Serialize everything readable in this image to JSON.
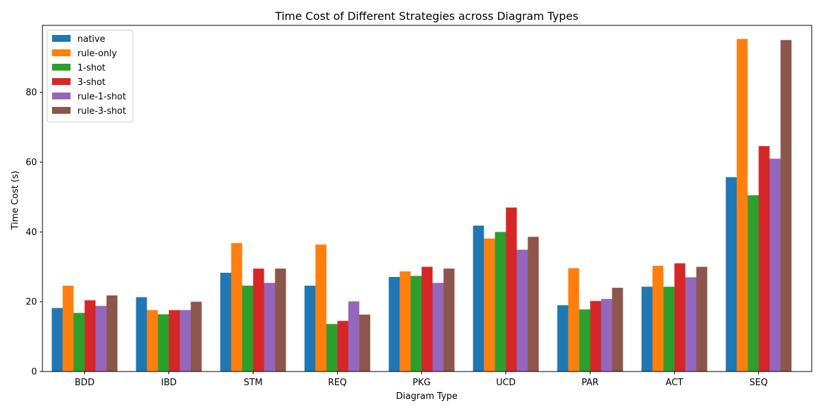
{
  "chart_data": {
    "type": "bar",
    "title": "Time Cost of Different Strategies across Diagram Types",
    "xlabel": "Diagram Type",
    "ylabel": "Time Cost (s)",
    "categories": [
      "BDD",
      "IBD",
      "STM",
      "REQ",
      "PKG",
      "UCD",
      "PAR",
      "ACT",
      "SEQ"
    ],
    "ylim": [
      0,
      99.2
    ],
    "yticks": [
      0,
      20,
      40,
      60,
      80
    ],
    "grid": false,
    "legend_position": "top-left",
    "series": [
      {
        "name": "native",
        "color": "#1f77b4",
        "values": [
          18.2,
          21.3,
          28.3,
          24.6,
          27.1,
          41.8,
          19.0,
          24.3,
          55.7
        ]
      },
      {
        "name": "rule-only",
        "color": "#ff7f0e",
        "values": [
          24.6,
          17.6,
          36.8,
          36.4,
          28.7,
          38.1,
          29.6,
          30.3,
          95.3
        ]
      },
      {
        "name": "1-shot",
        "color": "#2ca02c",
        "values": [
          16.8,
          16.4,
          24.6,
          13.6,
          27.4,
          40.0,
          17.8,
          24.3,
          50.5
        ]
      },
      {
        "name": "3-shot",
        "color": "#d62728",
        "values": [
          20.4,
          17.6,
          29.5,
          14.5,
          30.0,
          47.0,
          20.2,
          31.0,
          64.6
        ]
      },
      {
        "name": "rule-1-shot",
        "color": "#9467bd",
        "values": [
          18.8,
          17.6,
          25.4,
          20.1,
          25.4,
          34.9,
          20.8,
          27.0,
          61.0
        ]
      },
      {
        "name": "rule-3-shot",
        "color": "#8c564b",
        "values": [
          21.8,
          20.0,
          29.5,
          16.3,
          29.5,
          38.6,
          24.0,
          30.0,
          95.0
        ]
      }
    ]
  }
}
